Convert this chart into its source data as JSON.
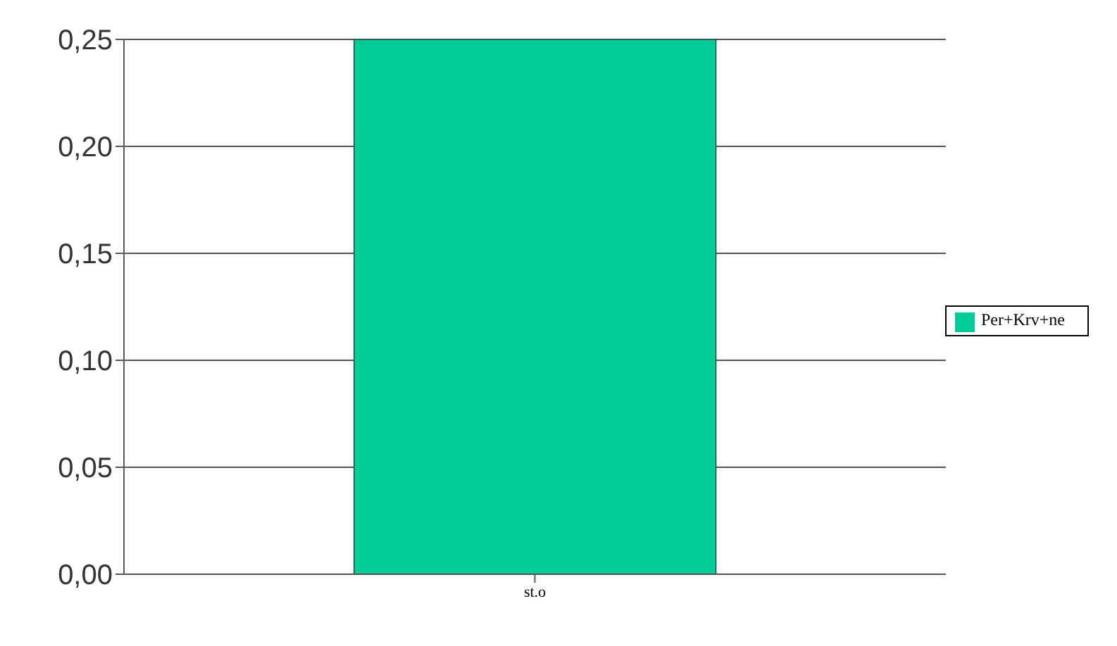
{
  "chart_data": {
    "type": "bar",
    "categories": [
      "st.o"
    ],
    "series": [
      {
        "name": "Per+Krv+ne",
        "color": "#00cc99",
        "values": [
          0.25
        ]
      }
    ],
    "ylim": [
      0,
      0.25
    ],
    "yticks": [
      {
        "value": 0,
        "label": "0,00"
      },
      {
        "value": 0.05,
        "label": "0,05"
      },
      {
        "value": 0.1,
        "label": "0,10"
      },
      {
        "value": 0.15,
        "label": "0,15"
      },
      {
        "value": 0.2,
        "label": "0,20"
      },
      {
        "value": 0.25,
        "label": "0,25"
      }
    ],
    "grid": "y",
    "legend": "right"
  }
}
